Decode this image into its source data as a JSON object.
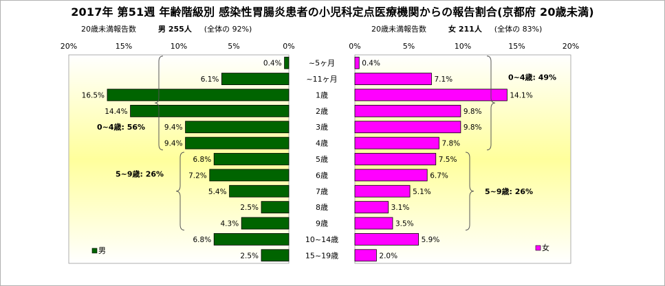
{
  "title": "2017年 第51週 年齢階級別 感染性胃腸炎患者の小児科定点医療機関からの報告割合(京都府 20歳未満)",
  "male_header": {
    "label": "20歳未満報告数",
    "count": "男 255人",
    "share": "(全体の 92%)"
  },
  "female_header": {
    "label": "20歳未満報告数",
    "count": "女 211人",
    "share": "(全体の 83%)"
  },
  "chart_data": {
    "type": "bar",
    "orientation": "horizontal",
    "layout": "population-pyramid",
    "categories": [
      "~5ヶ月",
      "~11ヶ月",
      "1歳",
      "2歳",
      "3歳",
      "4歳",
      "5歳",
      "6歳",
      "7歳",
      "8歳",
      "9歳",
      "10~14歳",
      "15~19歳"
    ],
    "series": [
      {
        "name": "男",
        "color": "#006400",
        "direction": "left",
        "values": [
          0.4,
          6.1,
          16.5,
          14.4,
          9.4,
          9.4,
          6.8,
          7.2,
          5.4,
          2.5,
          4.3,
          6.8,
          2.5
        ],
        "labels": [
          "0.4%",
          "6.1%",
          "16.5%",
          "14.4%",
          "9.4%",
          "9.4%",
          "6.8%",
          "7.2%",
          "5.4%",
          "2.5%",
          "4.3%",
          "6.8%",
          "2.5%"
        ]
      },
      {
        "name": "女",
        "color": "#ff00ff",
        "direction": "right",
        "values": [
          0.4,
          7.1,
          14.1,
          9.8,
          9.8,
          7.8,
          7.5,
          6.7,
          5.1,
          3.1,
          3.5,
          5.9,
          2.0
        ],
        "labels": [
          "0.4%",
          "7.1%",
          "14.1%",
          "9.8%",
          "9.8%",
          "7.8%",
          "7.5%",
          "6.7%",
          "5.1%",
          "3.1%",
          "3.5%",
          "5.9%",
          "2.0%"
        ]
      }
    ],
    "xlim": [
      0,
      20
    ],
    "male_ticks": [
      "20%",
      "15%",
      "10%",
      "5%",
      "0%"
    ],
    "female_ticks": [
      "0%",
      "5%",
      "10%",
      "15%",
      "20%"
    ],
    "grid": false,
    "legend": {
      "position": "bottom-left",
      "male": "男",
      "female": "女"
    },
    "annotations": {
      "male": [
        {
          "text": "0~4歳: 56%",
          "from": 0,
          "to": 5
        },
        {
          "text": "5~9歳: 26%",
          "from": 6,
          "to": 10
        }
      ],
      "female": [
        {
          "text": "0~4歳: 49%",
          "from": 0,
          "to": 5
        },
        {
          "text": "5~9歳: 26%",
          "from": 6,
          "to": 10
        }
      ]
    }
  }
}
